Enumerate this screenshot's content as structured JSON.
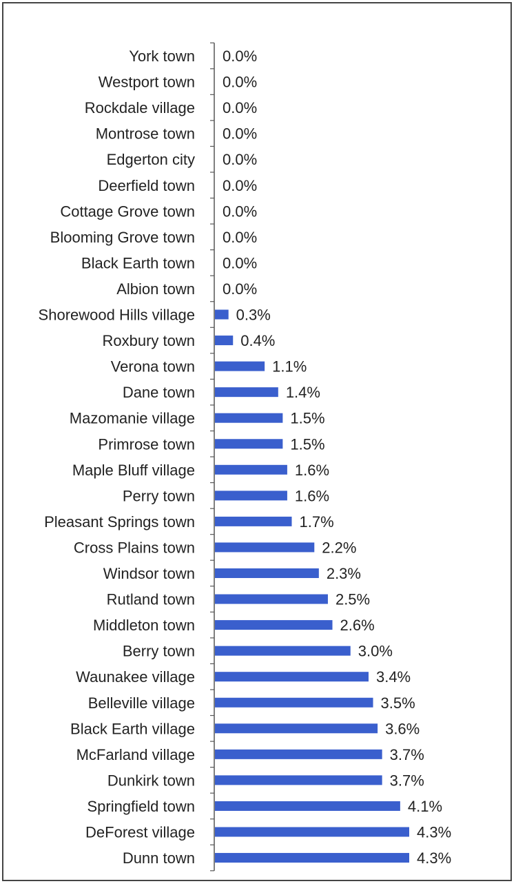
{
  "chart_data": {
    "type": "bar",
    "orientation": "horizontal",
    "categories": [
      "York town",
      "Westport town",
      "Rockdale village",
      "Montrose town",
      "Edgerton city",
      "Deerfield town",
      "Cottage Grove town",
      "Blooming Grove town",
      "Black Earth town",
      "Albion town",
      "Shorewood Hills village",
      "Roxbury town",
      "Verona town",
      "Dane town",
      "Mazomanie village",
      "Primrose town",
      "Maple Bluff village",
      "Perry town",
      "Pleasant Springs town",
      "Cross Plains town",
      "Windsor town",
      "Rutland town",
      "Middleton town",
      "Berry town",
      "Waunakee village",
      "Belleville village",
      "Black Earth village",
      "McFarland village",
      "Dunkirk town",
      "Springfield town",
      "DeForest village",
      "Dunn town"
    ],
    "values": [
      0.0,
      0.0,
      0.0,
      0.0,
      0.0,
      0.0,
      0.0,
      0.0,
      0.0,
      0.0,
      0.3,
      0.4,
      1.1,
      1.4,
      1.5,
      1.5,
      1.6,
      1.6,
      1.7,
      2.2,
      2.3,
      2.5,
      2.6,
      3.0,
      3.4,
      3.5,
      3.6,
      3.7,
      3.7,
      4.1,
      4.3,
      4.3
    ],
    "data_labels": [
      "0.0%",
      "0.0%",
      "0.0%",
      "0.0%",
      "0.0%",
      "0.0%",
      "0.0%",
      "0.0%",
      "0.0%",
      "0.0%",
      "0.3%",
      "0.4%",
      "1.1%",
      "1.4%",
      "1.5%",
      "1.5%",
      "1.6%",
      "1.6%",
      "1.7%",
      "2.2%",
      "2.3%",
      "2.5%",
      "2.6%",
      "3.0%",
      "3.4%",
      "3.5%",
      "3.6%",
      "3.7%",
      "3.7%",
      "4.1%",
      "4.3%",
      "4.3%"
    ],
    "xlim": [
      0,
      4.3
    ],
    "bar_color": "#3a5fcd",
    "grid": false,
    "title": "",
    "xlabel": "",
    "ylabel": ""
  }
}
